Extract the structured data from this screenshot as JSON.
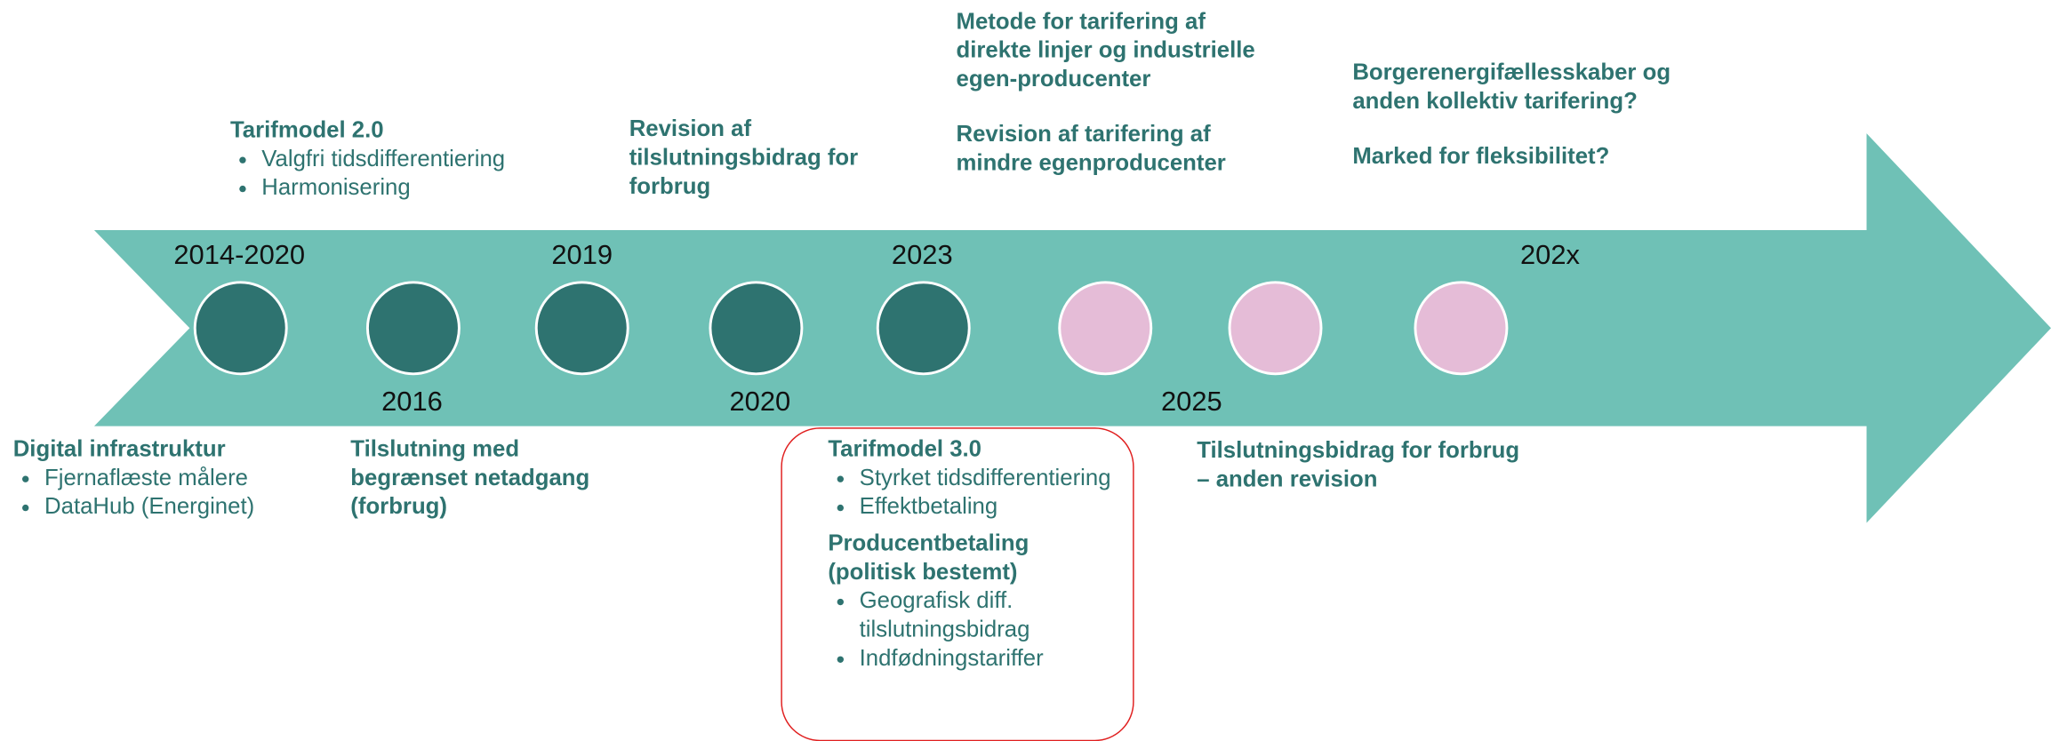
{
  "timeline": {
    "years": [
      "2014-2020",
      "2016",
      "2019",
      "2020",
      "2023",
      "2025",
      "202x"
    ],
    "events": [
      {
        "groups": [
          {
            "title": "Tarifmodel 2.0",
            "bullets": [
              "Valgfri tidsdifferentiering",
              "Harmonisering"
            ]
          }
        ]
      },
      {
        "groups": [
          {
            "title": "Revision af tilslutningsbidrag for forbrug",
            "bullets": []
          }
        ]
      },
      {
        "groups": [
          {
            "title": "Metode for tarifering af direkte linjer og industrielle egen-producenter",
            "bullets": []
          },
          {
            "title": "Revision af tarifering af mindre egenproducenter",
            "bullets": []
          }
        ]
      },
      {
        "groups": [
          {
            "title": "Borgerenergifællesskaber og anden kollektiv tarifering?",
            "bullets": []
          },
          {
            "title": "Marked for fleksibilitet?",
            "bullets": []
          }
        ]
      },
      {
        "groups": [
          {
            "title": "Digital infrastruktur",
            "bullets": [
              "Fjernaflæste målere",
              "DataHub (Energinet)"
            ]
          }
        ]
      },
      {
        "groups": [
          {
            "title": "Tilslutning med begrænset netadgang (forbrug)",
            "bullets": []
          }
        ]
      },
      {
        "groups": [
          {
            "title": "Tarifmodel 3.0",
            "bullets": [
              "Styrket tidsdifferentiering",
              "Effektbetaling"
            ]
          },
          {
            "title": "Producentbetaling (politisk bestemt)",
            "bullets": [
              "Geografisk diff. tilslutningsbidrag",
              "Indfødningstariffer"
            ]
          }
        ]
      },
      {
        "groups": [
          {
            "title": "Tilslutningsbidrag for forbrug – anden revision",
            "bullets": []
          }
        ]
      }
    ]
  }
}
